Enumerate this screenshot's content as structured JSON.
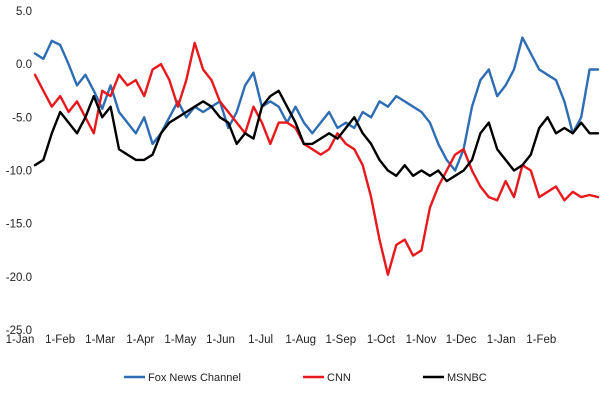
{
  "chart_data": {
    "type": "line",
    "title": "",
    "xlabel": "",
    "ylabel": "",
    "ylim": [
      -25,
      5
    ],
    "yticks": [
      5,
      0,
      -5,
      -10,
      -15,
      -20,
      -25
    ],
    "ytick_labels": [
      "5.0",
      "0.0",
      "-5.0",
      "-10.0",
      "-15.0",
      "-20.0",
      "-25.0"
    ],
    "x_tick_labels": [
      "1-Jan",
      "1-Feb",
      "1-Mar",
      "1-Apr",
      "1-May",
      "1-Jun",
      "1-Jul",
      "1-Aug",
      "1-Sep",
      "1-Oct",
      "1-Nov",
      "1-Dec",
      "1-Jan",
      "1-Feb"
    ],
    "grid": false,
    "legend_position": "bottom",
    "series": [
      {
        "name": "Fox News Channel",
        "color": "#2E6DB4",
        "values": [
          1.0,
          0.5,
          2.2,
          1.8,
          0.0,
          -2.0,
          -1.0,
          -2.5,
          -4.2,
          -2.0,
          -4.5,
          -5.5,
          -6.5,
          -5.0,
          -7.5,
          -6.5,
          -5.0,
          -3.5,
          -5.0,
          -4.0,
          -4.5,
          -4.0,
          -3.5,
          -6.0,
          -4.5,
          -2.0,
          -0.8,
          -4.0,
          -3.5,
          -4.0,
          -5.5,
          -4.0,
          -5.5,
          -6.5,
          -5.5,
          -4.5,
          -6.0,
          -5.5,
          -6.0,
          -4.5,
          -5.0,
          -3.5,
          -4.0,
          -3.0,
          -3.5,
          -4.0,
          -4.5,
          -5.5,
          -7.5,
          -9.0,
          -10.0,
          -8.0,
          -4.0,
          -1.5,
          -0.5,
          -3.0,
          -2.0,
          -0.5,
          2.5,
          1.0,
          -0.5,
          -1.0,
          -1.5,
          -3.5,
          -6.5,
          -5.0,
          -0.5,
          -0.5
        ]
      },
      {
        "name": "CNN",
        "color": "#E8191C",
        "values": [
          -1.0,
          -2.5,
          -4.0,
          -3.0,
          -4.5,
          -3.5,
          -5.0,
          -6.5,
          -2.5,
          -3.0,
          -1.0,
          -2.0,
          -1.5,
          -3.0,
          -0.5,
          0.0,
          -1.5,
          -4.0,
          -1.5,
          2.0,
          -0.5,
          -1.5,
          -3.5,
          -4.5,
          -5.5,
          -6.5,
          -4.0,
          -5.5,
          -7.5,
          -5.5,
          -5.5,
          -6.0,
          -7.5,
          -8.0,
          -8.5,
          -8.0,
          -6.5,
          -7.5,
          -8.0,
          -9.5,
          -12.5,
          -16.5,
          -19.8,
          -17.0,
          -16.5,
          -18.0,
          -17.5,
          -13.5,
          -11.5,
          -10.0,
          -8.5,
          -8.0,
          -10.0,
          -11.5,
          -12.5,
          -12.8,
          -11.0,
          -12.5,
          -9.5,
          -10.0,
          -12.5,
          -12.0,
          -11.5,
          -12.8,
          -12.0,
          -12.5,
          -12.3,
          -12.5
        ]
      },
      {
        "name": "MSNBC",
        "color": "#000000",
        "values": [
          -9.5,
          -9.0,
          -6.5,
          -4.5,
          -5.5,
          -6.5,
          -5.0,
          -3.0,
          -5.0,
          -4.0,
          -8.0,
          -8.5,
          -9.0,
          -9.0,
          -8.5,
          -6.5,
          -5.5,
          -5.0,
          -4.5,
          -4.0,
          -3.5,
          -4.0,
          -5.0,
          -5.5,
          -7.5,
          -6.5,
          -7.0,
          -4.0,
          -3.0,
          -2.5,
          -4.0,
          -5.5,
          -7.5,
          -7.5,
          -7.0,
          -6.5,
          -7.0,
          -6.0,
          -5.0,
          -6.5,
          -7.5,
          -9.0,
          -10.0,
          -10.5,
          -9.5,
          -10.5,
          -10.0,
          -10.5,
          -10.0,
          -11.0,
          -10.5,
          -10.0,
          -9.0,
          -6.5,
          -5.5,
          -8.0,
          -9.0,
          -10.0,
          -9.5,
          -8.5,
          -6.0,
          -5.0,
          -6.5,
          -6.0,
          -6.5,
          -5.5,
          -6.5,
          -6.5
        ]
      }
    ]
  }
}
